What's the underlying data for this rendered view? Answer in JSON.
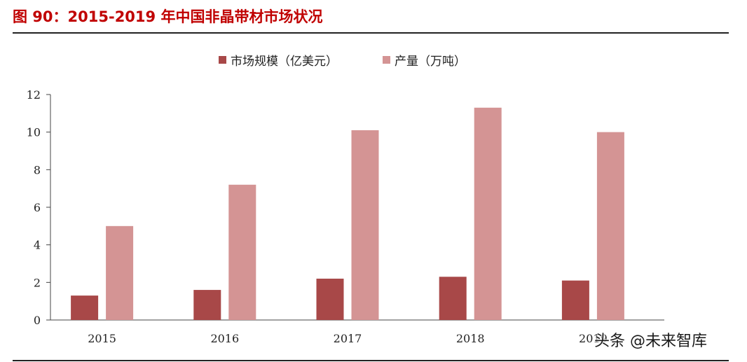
{
  "figure": {
    "title": "图 90：2015-2019 年中国非晶带材市场状况"
  },
  "watermark": "头条 @未来智库",
  "chart_data": {
    "type": "bar",
    "categories": [
      "2015",
      "2016",
      "2017",
      "2018",
      "2019"
    ],
    "series": [
      {
        "name": "市场规模（亿美元）",
        "values": [
          1.3,
          1.6,
          2.2,
          2.3,
          2.1
        ],
        "color": "#a84848"
      },
      {
        "name": "产量（万吨）",
        "values": [
          5.0,
          7.2,
          10.1,
          11.3,
          10.0
        ],
        "color": "#d49494"
      }
    ],
    "ylim": [
      0,
      12
    ],
    "yticks": [
      0,
      2,
      4,
      6,
      8,
      10,
      12
    ],
    "legend_position": "top-center",
    "grid": false
  }
}
